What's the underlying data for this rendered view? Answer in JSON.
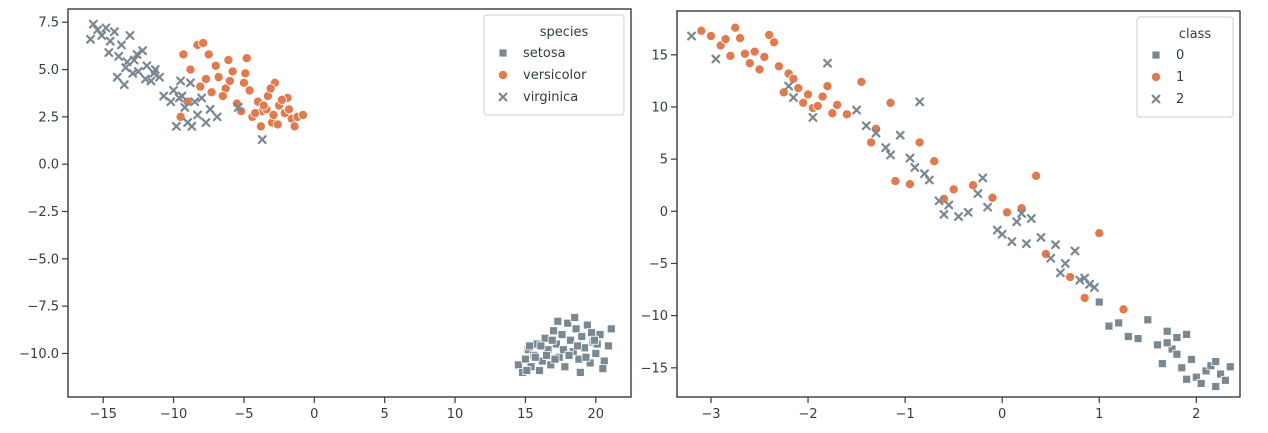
{
  "chart_data": [
    {
      "type": "scatter",
      "xlim": [
        -17.5,
        22.5
      ],
      "ylim": [
        -12.3,
        8.2
      ],
      "x_ticks": [
        -15,
        -10,
        -5,
        0,
        5,
        10,
        15,
        20
      ],
      "x_tick_labels": [
        "−15",
        "−10",
        "−5",
        "0",
        "5",
        "10",
        "15",
        "20"
      ],
      "y_ticks": [
        7.5,
        5.0,
        2.5,
        0.0,
        -2.5,
        -5.0,
        -7.5,
        -10.0
      ],
      "y_tick_labels": [
        "7.5",
        "5.0",
        "2.5",
        "0.0",
        "−2.5",
        "−5.0",
        "−7.5",
        "−10.0"
      ],
      "grid": false,
      "legend": {
        "title": "species",
        "placement": "top-right"
      },
      "series": [
        {
          "name": "setosa",
          "marker": "square",
          "color": "#7a8892",
          "points": [
            [
              14.5,
              -10.6
            ],
            [
              14.8,
              -11.0
            ],
            [
              15.0,
              -10.3
            ],
            [
              15.2,
              -9.8
            ],
            [
              15.4,
              -10.7
            ],
            [
              15.6,
              -10.1
            ],
            [
              15.8,
              -9.5
            ],
            [
              16.0,
              -10.9
            ],
            [
              16.2,
              -10.4
            ],
            [
              16.4,
              -9.2
            ],
            [
              16.6,
              -9.8
            ],
            [
              16.8,
              -10.6
            ],
            [
              17.0,
              -8.8
            ],
            [
              17.2,
              -9.5
            ],
            [
              17.4,
              -10.2
            ],
            [
              17.6,
              -9.0
            ],
            [
              17.8,
              -10.7
            ],
            [
              18.0,
              -8.4
            ],
            [
              18.2,
              -9.3
            ],
            [
              18.4,
              -9.9
            ],
            [
              18.6,
              -8.7
            ],
            [
              18.8,
              -10.3
            ],
            [
              19.0,
              -9.1
            ],
            [
              19.2,
              -9.7
            ],
            [
              19.4,
              -8.5
            ],
            [
              19.6,
              -10.5
            ],
            [
              19.8,
              -9.4
            ],
            [
              20.0,
              -10.0
            ],
            [
              20.3,
              -9.0
            ],
            [
              20.6,
              -10.4
            ],
            [
              20.9,
              -9.6
            ],
            [
              21.1,
              -8.7
            ],
            [
              15.1,
              -10.9
            ],
            [
              15.7,
              -10.2
            ],
            [
              16.1,
              -9.6
            ],
            [
              16.9,
              -9.3
            ],
            [
              17.3,
              -8.3
            ],
            [
              17.7,
              -9.8
            ],
            [
              18.1,
              -10.1
            ],
            [
              18.5,
              -8.1
            ],
            [
              18.9,
              -11.0
            ],
            [
              19.3,
              -10.2
            ],
            [
              19.7,
              -8.9
            ],
            [
              20.1,
              -9.5
            ],
            [
              20.5,
              -10.8
            ],
            [
              16.5,
              -10.1
            ],
            [
              17.1,
              -10.3
            ],
            [
              18.7,
              -9.6
            ],
            [
              19.9,
              -9.3
            ],
            [
              15.3,
              -9.6
            ]
          ]
        },
        {
          "name": "versicolor",
          "marker": "circle",
          "color": "#e07b4f",
          "points": [
            [
              -9.3,
              5.8
            ],
            [
              -8.3,
              6.3
            ],
            [
              -7.9,
              6.4
            ],
            [
              -8.8,
              5.0
            ],
            [
              -7.5,
              5.8
            ],
            [
              -7.0,
              5.2
            ],
            [
              -6.8,
              4.6
            ],
            [
              -6.3,
              4.0
            ],
            [
              -6.0,
              4.4
            ],
            [
              -5.5,
              3.2
            ],
            [
              -5.0,
              4.3
            ],
            [
              -4.8,
              5.6
            ],
            [
              -4.4,
              2.5
            ],
            [
              -4.0,
              3.3
            ],
            [
              -3.7,
              2.8
            ],
            [
              -3.3,
              3.6
            ],
            [
              -3.0,
              2.2
            ],
            [
              -2.8,
              4.3
            ],
            [
              -2.5,
              3.1
            ],
            [
              -2.1,
              2.7
            ],
            [
              -1.9,
              3.5
            ],
            [
              -1.6,
              2.4
            ],
            [
              -1.2,
              2.5
            ],
            [
              -0.8,
              2.6
            ],
            [
              -9.5,
              2.5
            ],
            [
              -9.0,
              3.3
            ],
            [
              -7.3,
              3.8
            ],
            [
              -6.5,
              3.6
            ],
            [
              -5.8,
              4.9
            ],
            [
              -5.2,
              2.8
            ],
            [
              -4.6,
              3.9
            ],
            [
              -4.2,
              2.7
            ],
            [
              -3.8,
              2.0
            ],
            [
              -3.4,
              2.9
            ],
            [
              -2.9,
              2.6
            ],
            [
              -2.3,
              3.4
            ],
            [
              -1.8,
              2.9
            ],
            [
              -1.4,
              2.0
            ],
            [
              -6.1,
              5.5
            ],
            [
              -4.9,
              4.8
            ],
            [
              -3.6,
              3.1
            ],
            [
              -2.6,
              2.1
            ],
            [
              -7.7,
              4.5
            ],
            [
              -8.1,
              4.1
            ],
            [
              -3.1,
              4.0
            ]
          ]
        },
        {
          "name": "virginica",
          "marker": "x",
          "color": "#7a8892",
          "points": [
            [
              -15.7,
              7.4
            ],
            [
              -15.4,
              7.1
            ],
            [
              -15.1,
              6.8
            ],
            [
              -14.8,
              7.2
            ],
            [
              -14.5,
              6.5
            ],
            [
              -14.2,
              7.0
            ],
            [
              -13.9,
              5.7
            ],
            [
              -13.7,
              6.3
            ],
            [
              -13.4,
              5.1
            ],
            [
              -13.1,
              6.8
            ],
            [
              -12.8,
              5.5
            ],
            [
              -12.5,
              4.9
            ],
            [
              -12.2,
              6.0
            ],
            [
              -11.9,
              5.2
            ],
            [
              -11.6,
              4.4
            ],
            [
              -11.3,
              5.0
            ],
            [
              -11.0,
              4.6
            ],
            [
              -10.7,
              3.6
            ],
            [
              -15.9,
              6.6
            ],
            [
              -14.0,
              4.6
            ],
            [
              -13.5,
              4.2
            ],
            [
              -12.9,
              4.8
            ],
            [
              -12.0,
              4.5
            ],
            [
              -10.0,
              3.9
            ],
            [
              -9.8,
              2.0
            ],
            [
              -9.5,
              4.4
            ],
            [
              -9.2,
              3.0
            ],
            [
              -9.0,
              2.2
            ],
            [
              -8.8,
              4.3
            ],
            [
              -8.5,
              3.3
            ],
            [
              -8.3,
              2.6
            ],
            [
              -8.0,
              3.5
            ],
            [
              -7.7,
              2.2
            ],
            [
              -7.4,
              2.9
            ],
            [
              -10.2,
              3.3
            ],
            [
              -9.6,
              3.5
            ],
            [
              -8.7,
              2.0
            ],
            [
              -6.9,
              2.5
            ],
            [
              -5.4,
              3.0
            ],
            [
              -3.7,
              1.3
            ],
            [
              -14.6,
              5.9
            ],
            [
              -13.3,
              5.4
            ],
            [
              -12.6,
              5.8
            ],
            [
              -11.4,
              4.8
            ],
            [
              -9.4,
              3.6
            ]
          ]
        }
      ]
    },
    {
      "type": "scatter",
      "xlim": [
        -3.35,
        2.45
      ],
      "ylim": [
        -17.8,
        19.2
      ],
      "x_ticks": [
        -3,
        -2,
        -1,
        0,
        1,
        2
      ],
      "x_tick_labels": [
        "−3",
        "−2",
        "−1",
        "0",
        "1",
        "2"
      ],
      "y_ticks": [
        15,
        10,
        5,
        0,
        -5,
        -10,
        -15
      ],
      "y_tick_labels": [
        "15",
        "10",
        "5",
        "0",
        "−5",
        "−10",
        "−15"
      ],
      "grid": false,
      "legend": {
        "title": "class",
        "placement": "top-right"
      },
      "series": [
        {
          "name": "0",
          "marker": "square",
          "color": "#7a8892",
          "points": [
            [
              1.1,
              -11.0
            ],
            [
              1.2,
              -10.7
            ],
            [
              1.3,
              -12.0
            ],
            [
              1.5,
              -10.4
            ],
            [
              1.6,
              -12.8
            ],
            [
              1.65,
              -14.6
            ],
            [
              1.7,
              -11.5
            ],
            [
              1.75,
              -13.2
            ],
            [
              1.8,
              -12.1
            ],
            [
              1.85,
              -15.0
            ],
            [
              1.9,
              -11.8
            ],
            [
              1.95,
              -14.2
            ],
            [
              2.0,
              -15.9
            ],
            [
              2.05,
              -16.5
            ],
            [
              2.1,
              -15.3
            ],
            [
              2.15,
              -14.8
            ],
            [
              2.2,
              -16.8
            ],
            [
              2.25,
              -15.6
            ],
            [
              2.3,
              -16.2
            ],
            [
              2.35,
              -14.9
            ],
            [
              1.7,
              -12.6
            ],
            [
              1.8,
              -13.7
            ],
            [
              1.9,
              -16.1
            ],
            [
              2.2,
              -14.4
            ],
            [
              1.0,
              -8.7
            ],
            [
              1.4,
              -12.2
            ]
          ]
        },
        {
          "name": "1",
          "marker": "circle",
          "color": "#e07b4f",
          "points": [
            [
              -3.1,
              17.3
            ],
            [
              -3.0,
              16.8
            ],
            [
              -2.9,
              15.9
            ],
            [
              -2.8,
              14.9
            ],
            [
              -2.75,
              17.6
            ],
            [
              -2.7,
              16.6
            ],
            [
              -2.6,
              14.2
            ],
            [
              -2.55,
              15.3
            ],
            [
              -2.5,
              13.6
            ],
            [
              -2.45,
              14.8
            ],
            [
              -2.4,
              16.9
            ],
            [
              -2.35,
              16.2
            ],
            [
              -2.3,
              13.9
            ],
            [
              -2.2,
              13.2
            ],
            [
              -2.15,
              12.7
            ],
            [
              -2.1,
              11.8
            ],
            [
              -2.05,
              10.4
            ],
            [
              -2.0,
              11.2
            ],
            [
              -1.95,
              9.9
            ],
            [
              -1.9,
              10.1
            ],
            [
              -1.85,
              11.0
            ],
            [
              -1.8,
              12.0
            ],
            [
              -1.7,
              10.2
            ],
            [
              -1.6,
              9.3
            ],
            [
              -1.45,
              12.4
            ],
            [
              -1.35,
              6.6
            ],
            [
              -1.3,
              7.9
            ],
            [
              -1.15,
              10.4
            ],
            [
              -1.1,
              2.9
            ],
            [
              -0.95,
              2.6
            ],
            [
              -0.85,
              6.6
            ],
            [
              -0.7,
              4.8
            ],
            [
              -0.6,
              1.2
            ],
            [
              -0.5,
              2.1
            ],
            [
              -0.3,
              2.5
            ],
            [
              -0.1,
              1.3
            ],
            [
              0.05,
              -0.1
            ],
            [
              0.2,
              0.3
            ],
            [
              0.35,
              3.4
            ],
            [
              0.45,
              -4.1
            ],
            [
              0.7,
              -6.3
            ],
            [
              0.85,
              -8.3
            ],
            [
              1.0,
              -2.1
            ],
            [
              1.25,
              -9.4
            ],
            [
              -2.85,
              16.5
            ],
            [
              -2.65,
              15.1
            ],
            [
              -2.25,
              11.4
            ],
            [
              -1.75,
              9.4
            ]
          ]
        },
        {
          "name": "2",
          "marker": "x",
          "color": "#7a8892",
          "points": [
            [
              -3.2,
              16.8
            ],
            [
              -2.95,
              14.6
            ],
            [
              -2.2,
              12.0
            ],
            [
              -2.15,
              10.9
            ],
            [
              -1.95,
              9.0
            ],
            [
              -1.8,
              14.2
            ],
            [
              -1.5,
              9.7
            ],
            [
              -1.4,
              8.2
            ],
            [
              -1.3,
              7.5
            ],
            [
              -1.2,
              6.1
            ],
            [
              -1.05,
              7.3
            ],
            [
              -0.95,
              5.1
            ],
            [
              -0.85,
              10.5
            ],
            [
              -0.8,
              3.6
            ],
            [
              -0.75,
              3.0
            ],
            [
              -0.65,
              1.0
            ],
            [
              -0.55,
              0.6
            ],
            [
              -0.45,
              -0.5
            ],
            [
              -0.35,
              -0.1
            ],
            [
              -0.25,
              1.7
            ],
            [
              -0.15,
              0.4
            ],
            [
              -0.05,
              -1.8
            ],
            [
              0.0,
              -2.2
            ],
            [
              0.1,
              -2.9
            ],
            [
              0.15,
              -1.0
            ],
            [
              0.25,
              -3.1
            ],
            [
              0.3,
              -0.7
            ],
            [
              0.4,
              -2.5
            ],
            [
              0.5,
              -4.5
            ],
            [
              0.55,
              -3.2
            ],
            [
              0.6,
              -5.9
            ],
            [
              0.65,
              -5.0
            ],
            [
              0.75,
              -3.8
            ],
            [
              0.8,
              -6.6
            ],
            [
              0.9,
              -7.0
            ],
            [
              0.95,
              -7.3
            ],
            [
              0.85,
              -6.4
            ],
            [
              -0.2,
              3.2
            ],
            [
              0.2,
              -0.2
            ],
            [
              -1.15,
              5.4
            ],
            [
              -0.9,
              4.2
            ],
            [
              -0.6,
              -0.3
            ]
          ]
        }
      ]
    }
  ]
}
